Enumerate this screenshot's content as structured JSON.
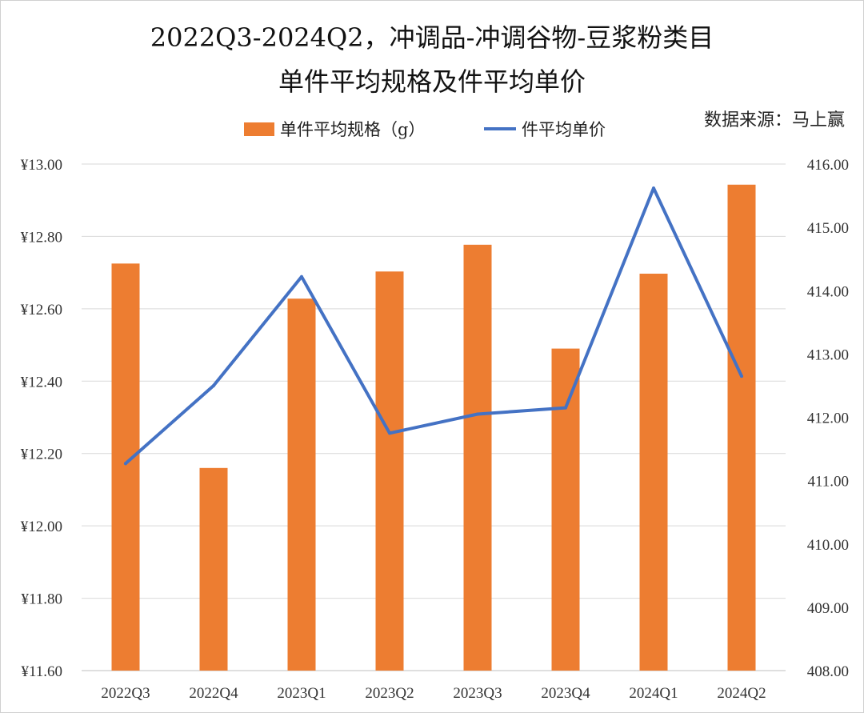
{
  "chart_data": {
    "type": "bar",
    "title": "2022Q3-2024Q2，冲调品-冲调谷物-豆浆粉类目",
    "subtitle": "单件平均规格及件平均单价",
    "source": "数据来源：马上赢",
    "categories": [
      "2022Q3",
      "2022Q4",
      "2023Q1",
      "2023Q2",
      "2023Q3",
      "2023Q4",
      "2024Q1",
      "2024Q2"
    ],
    "left_axis": {
      "ylim": [
        11.6,
        13.0
      ],
      "ticks": [
        11.6,
        11.8,
        12.0,
        12.2,
        12.4,
        12.6,
        12.8,
        13.0
      ],
      "tick_labels": [
        "¥11.60",
        "¥11.80",
        "¥12.00",
        "¥12.20",
        "¥12.40",
        "¥12.60",
        "¥12.80",
        "¥13.00"
      ]
    },
    "right_axis": {
      "ylim": [
        408.0,
        416.0
      ],
      "ticks": [
        408,
        409,
        410,
        411,
        412,
        413,
        414,
        415,
        416
      ],
      "tick_labels": [
        "408.00",
        "409.00",
        "410.00",
        "411.00",
        "412.00",
        "413.00",
        "414.00",
        "415.00",
        "416.00"
      ]
    },
    "grid": true,
    "legend_position": "top-center",
    "series": [
      {
        "name": "单件平均规格（g）",
        "type": "bar",
        "axis": "left",
        "color": "#ED7D31",
        "values": [
          12.725,
          12.16,
          12.628,
          12.703,
          12.777,
          12.49,
          12.697,
          12.943
        ]
      },
      {
        "name": "件平均单价",
        "type": "line",
        "axis": "right",
        "color": "#4472C4",
        "values": [
          411.27,
          412.5,
          414.22,
          411.75,
          412.05,
          412.15,
          415.62,
          412.65
        ]
      }
    ]
  }
}
